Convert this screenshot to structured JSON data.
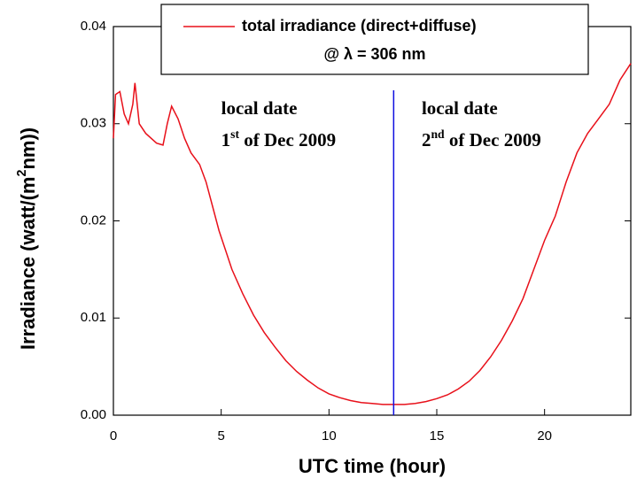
{
  "chart_data": {
    "type": "line",
    "x_label": "UTC time (hour)",
    "y_label": [
      {
        "text": "Irradiance (watt/(m"
      },
      {
        "text": "2",
        "sup": true
      },
      {
        "text": "nm))"
      }
    ],
    "x": [
      0,
      0.1,
      0.3,
      0.5,
      0.7,
      0.9,
      1.0,
      1.2,
      1.5,
      2.0,
      2.3,
      2.5,
      2.7,
      3.0,
      3.3,
      3.6,
      4.0,
      4.3,
      4.6,
      4.9,
      5.2,
      5.5,
      6.0,
      6.5,
      7.0,
      7.5,
      8.0,
      8.5,
      9.0,
      9.5,
      10.0,
      10.5,
      11.0,
      11.5,
      12.0,
      12.5,
      13.0,
      13.5,
      14.0,
      14.5,
      15.0,
      15.5,
      16.0,
      16.5,
      17.0,
      17.5,
      18.0,
      18.5,
      19.0,
      19.5,
      20.0,
      20.5,
      21.0,
      21.5,
      22.0,
      22.5,
      23.0,
      23.5,
      24.0
    ],
    "series": [
      {
        "name": "total irradiance (direct+diffuse)",
        "color": "#e8101a",
        "values": [
          0.0285,
          0.033,
          0.0333,
          0.031,
          0.03,
          0.032,
          0.0342,
          0.03,
          0.029,
          0.028,
          0.0278,
          0.03,
          0.0318,
          0.0305,
          0.0285,
          0.027,
          0.0258,
          0.024,
          0.0215,
          0.019,
          0.017,
          0.015,
          0.0125,
          0.0103,
          0.0085,
          0.007,
          0.0056,
          0.0045,
          0.0036,
          0.0028,
          0.0022,
          0.0018,
          0.0015,
          0.0013,
          0.0012,
          0.0011,
          0.0011,
          0.0011,
          0.0012,
          0.0014,
          0.0017,
          0.0021,
          0.0027,
          0.0035,
          0.0046,
          0.006,
          0.0077,
          0.0097,
          0.012,
          0.015,
          0.018,
          0.0205,
          0.024,
          0.027,
          0.029,
          0.0305,
          0.032,
          0.0345,
          0.0362
        ]
      }
    ],
    "legend_note": "@ λ = 306 nm",
    "xlim": [
      0,
      24
    ],
    "xticks": [
      0,
      5,
      10,
      15,
      20
    ],
    "ylim": [
      0,
      0.04
    ],
    "yticks": [
      {
        "value": 0,
        "label": "0.00"
      },
      0.01,
      0.02,
      0.03,
      0.04
    ],
    "vline": {
      "x": 13,
      "color": "#1010e0"
    },
    "annotations": [
      {
        "x": 5,
        "lines": [
          [
            {
              "text": "local date"
            }
          ],
          [
            {
              "text": "1"
            },
            {
              "text": "st",
              "sup": true
            },
            {
              "text": " of Dec 2009"
            }
          ]
        ]
      },
      {
        "x": 14.3,
        "lines": [
          [
            {
              "text": "local date"
            }
          ],
          [
            {
              "text": "2"
            },
            {
              "text": "nd",
              "sup": true
            },
            {
              "text": " of Dec 2009"
            }
          ]
        ]
      }
    ]
  }
}
